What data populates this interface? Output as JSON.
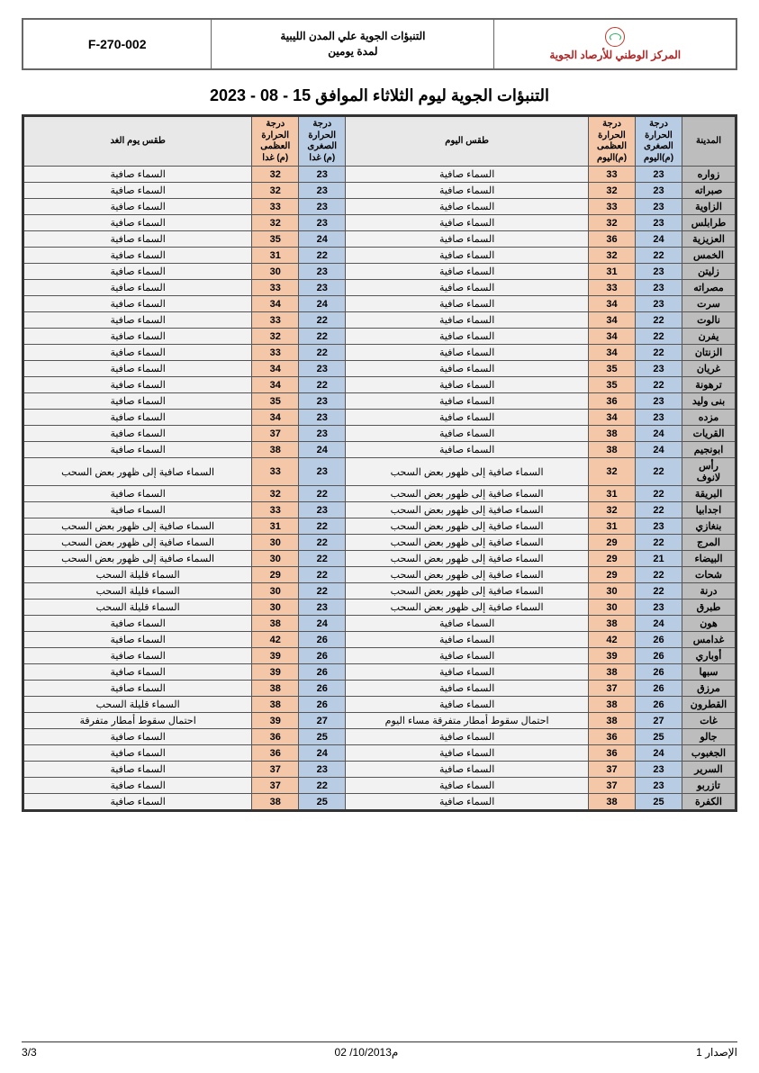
{
  "header": {
    "org_name": "المركز الوطني للأرصاد الجوية",
    "subtitle_line1": "التنبؤات الجوية علي المدن الليبية",
    "subtitle_line2": "لمدة يومين",
    "form_code": "F-270-002"
  },
  "title": "التنبؤات الجوية ليوم الثلاثاء الموافق 15 - 08 - 2023",
  "columns": {
    "city": "المدينة",
    "tmin_today": "درجة الحرارة الصغرى (م)اليوم",
    "tmax_today": "درجة الحرارة العظمى (م)اليوم",
    "wx_today": "طقس اليوم",
    "tmin_tom": "درجة الحرارة الصغرى (م) غدا",
    "tmax_tom": "درجة الحرارة العظمى (م) غدا",
    "wx_tom": "طقس يوم الغد"
  },
  "colors": {
    "city_bg": "#bdbdbd",
    "tmin_bg": "#b8cce4",
    "tmax_bg": "#f4c7a8",
    "wx_bg": "#f2f2f2",
    "border": "#555555",
    "outer_border": "#333333",
    "org_name_color": "#b02525"
  },
  "rows": [
    {
      "city": "زواره",
      "tmin1": 23,
      "tmax1": 33,
      "wx1": "السماء صافية",
      "tmin2": 23,
      "tmax2": 32,
      "wx2": "السماء صافية"
    },
    {
      "city": "صبراته",
      "tmin1": 23,
      "tmax1": 32,
      "wx1": "السماء صافية",
      "tmin2": 23,
      "tmax2": 32,
      "wx2": "السماء صافية"
    },
    {
      "city": "الزاوية",
      "tmin1": 23,
      "tmax1": 33,
      "wx1": "السماء صافية",
      "tmin2": 23,
      "tmax2": 33,
      "wx2": "السماء صافية"
    },
    {
      "city": "طرابلس",
      "tmin1": 23,
      "tmax1": 32,
      "wx1": "السماء صافية",
      "tmin2": 23,
      "tmax2": 32,
      "wx2": "السماء صافية"
    },
    {
      "city": "العزيزية",
      "tmin1": 24,
      "tmax1": 36,
      "wx1": "السماء صافية",
      "tmin2": 24,
      "tmax2": 35,
      "wx2": "السماء صافية"
    },
    {
      "city": "الخمس",
      "tmin1": 22,
      "tmax1": 32,
      "wx1": "السماء صافية",
      "tmin2": 22,
      "tmax2": 31,
      "wx2": "السماء صافية"
    },
    {
      "city": "زليتن",
      "tmin1": 23,
      "tmax1": 31,
      "wx1": "السماء صافية",
      "tmin2": 23,
      "tmax2": 30,
      "wx2": "السماء صافية"
    },
    {
      "city": "مصراته",
      "tmin1": 23,
      "tmax1": 33,
      "wx1": "السماء صافية",
      "tmin2": 23,
      "tmax2": 33,
      "wx2": "السماء صافية"
    },
    {
      "city": "سرت",
      "tmin1": 23,
      "tmax1": 34,
      "wx1": "السماء صافية",
      "tmin2": 24,
      "tmax2": 34,
      "wx2": "السماء صافية"
    },
    {
      "city": "نالوت",
      "tmin1": 22,
      "tmax1": 34,
      "wx1": "السماء صافية",
      "tmin2": 22,
      "tmax2": 33,
      "wx2": "السماء صافية"
    },
    {
      "city": "يفرن",
      "tmin1": 22,
      "tmax1": 34,
      "wx1": "السماء صافية",
      "tmin2": 22,
      "tmax2": 32,
      "wx2": "السماء صافية"
    },
    {
      "city": "الزنتان",
      "tmin1": 22,
      "tmax1": 34,
      "wx1": "السماء صافية",
      "tmin2": 22,
      "tmax2": 33,
      "wx2": "السماء صافية"
    },
    {
      "city": "غريان",
      "tmin1": 23,
      "tmax1": 35,
      "wx1": "السماء صافية",
      "tmin2": 23,
      "tmax2": 34,
      "wx2": "السماء صافية"
    },
    {
      "city": "ترهونة",
      "tmin1": 22,
      "tmax1": 35,
      "wx1": "السماء صافية",
      "tmin2": 22,
      "tmax2": 34,
      "wx2": "السماء صافية"
    },
    {
      "city": "بنى وليد",
      "tmin1": 23,
      "tmax1": 36,
      "wx1": "السماء صافية",
      "tmin2": 23,
      "tmax2": 35,
      "wx2": "السماء صافية"
    },
    {
      "city": "مزده",
      "tmin1": 23,
      "tmax1": 34,
      "wx1": "السماء صافية",
      "tmin2": 23,
      "tmax2": 34,
      "wx2": "السماء صافية"
    },
    {
      "city": "القريات",
      "tmin1": 24,
      "tmax1": 38,
      "wx1": "السماء صافية",
      "tmin2": 23,
      "tmax2": 37,
      "wx2": "السماء صافية"
    },
    {
      "city": "ابونجيم",
      "tmin1": 24,
      "tmax1": 38,
      "wx1": "السماء صافية",
      "tmin2": 24,
      "tmax2": 38,
      "wx2": "السماء صافية"
    },
    {
      "city": "رأس لانوف",
      "tmin1": 22,
      "tmax1": 32,
      "wx1": "السماء صافية إلى ظهور بعض السحب",
      "tmin2": 23,
      "tmax2": 33,
      "wx2": "السماء صافية إلى ظهور بعض السحب"
    },
    {
      "city": "البريقة",
      "tmin1": 22,
      "tmax1": 31,
      "wx1": "السماء صافية إلى ظهور بعض السحب",
      "tmin2": 22,
      "tmax2": 32,
      "wx2": "السماء صافية"
    },
    {
      "city": "اجدابيا",
      "tmin1": 22,
      "tmax1": 32,
      "wx1": "السماء صافية إلى ظهور بعض السحب",
      "tmin2": 23,
      "tmax2": 33,
      "wx2": "السماء صافية"
    },
    {
      "city": "بنغازي",
      "tmin1": 23,
      "tmax1": 31,
      "wx1": "السماء صافية إلى ظهور بعض السحب",
      "tmin2": 22,
      "tmax2": 31,
      "wx2": "السماء صافية إلى ظهور بعض السحب"
    },
    {
      "city": "المرج",
      "tmin1": 22,
      "tmax1": 29,
      "wx1": "السماء صافية إلى ظهور بعض السحب",
      "tmin2": 22,
      "tmax2": 30,
      "wx2": "السماء صافية إلى ظهور بعض السحب"
    },
    {
      "city": "البيضاء",
      "tmin1": 21,
      "tmax1": 29,
      "wx1": "السماء صافية إلى ظهور بعض السحب",
      "tmin2": 22,
      "tmax2": 30,
      "wx2": "السماء صافية إلى ظهور بعض السحب"
    },
    {
      "city": "شحات",
      "tmin1": 22,
      "tmax1": 29,
      "wx1": "السماء صافية إلى ظهور بعض السحب",
      "tmin2": 22,
      "tmax2": 29,
      "wx2": "السماء قليلة السحب"
    },
    {
      "city": "درنة",
      "tmin1": 22,
      "tmax1": 30,
      "wx1": "السماء صافية إلى ظهور بعض السحب",
      "tmin2": 22,
      "tmax2": 30,
      "wx2": "السماء قليلة السحب"
    },
    {
      "city": "طبرق",
      "tmin1": 23,
      "tmax1": 30,
      "wx1": "السماء صافية إلى ظهور بعض السحب",
      "tmin2": 23,
      "tmax2": 30,
      "wx2": "السماء قليلة السحب"
    },
    {
      "city": "هون",
      "tmin1": 24,
      "tmax1": 38,
      "wx1": "السماء صافية",
      "tmin2": 24,
      "tmax2": 38,
      "wx2": "السماء صافية"
    },
    {
      "city": "غدامس",
      "tmin1": 26,
      "tmax1": 42,
      "wx1": "السماء صافية",
      "tmin2": 26,
      "tmax2": 42,
      "wx2": "السماء صافية"
    },
    {
      "city": "أوباري",
      "tmin1": 26,
      "tmax1": 39,
      "wx1": "السماء صافية",
      "tmin2": 26,
      "tmax2": 39,
      "wx2": "السماء صافية"
    },
    {
      "city": "سبها",
      "tmin1": 26,
      "tmax1": 38,
      "wx1": "السماء صافية",
      "tmin2": 26,
      "tmax2": 39,
      "wx2": "السماء صافية"
    },
    {
      "city": "مرزق",
      "tmin1": 26,
      "tmax1": 37,
      "wx1": "السماء صافية",
      "tmin2": 26,
      "tmax2": 38,
      "wx2": "السماء صافية"
    },
    {
      "city": "القطرون",
      "tmin1": 26,
      "tmax1": 38,
      "wx1": "السماء صافية",
      "tmin2": 26,
      "tmax2": 38,
      "wx2": "السماء قليلة السحب"
    },
    {
      "city": "غات",
      "tmin1": 27,
      "tmax1": 38,
      "wx1": "احتمال سقوط أمطار متفرقة مساء اليوم",
      "tmin2": 27,
      "tmax2": 39,
      "wx2": "احتمال سقوط أمطار متفرقة"
    },
    {
      "city": "جالو",
      "tmin1": 25,
      "tmax1": 36,
      "wx1": "السماء صافية",
      "tmin2": 25,
      "tmax2": 36,
      "wx2": "السماء صافية"
    },
    {
      "city": "الجغبوب",
      "tmin1": 24,
      "tmax1": 36,
      "wx1": "السماء صافية",
      "tmin2": 24,
      "tmax2": 36,
      "wx2": "السماء صافية"
    },
    {
      "city": "السرير",
      "tmin1": 23,
      "tmax1": 37,
      "wx1": "السماء صافية",
      "tmin2": 23,
      "tmax2": 37,
      "wx2": "السماء صافية"
    },
    {
      "city": "تازربو",
      "tmin1": 23,
      "tmax1": 37,
      "wx1": "السماء صافية",
      "tmin2": 22,
      "tmax2": 37,
      "wx2": "السماء صافية"
    },
    {
      "city": "الكفرة",
      "tmin1": 25,
      "tmax1": 38,
      "wx1": "السماء صافية",
      "tmin2": 25,
      "tmax2": 38,
      "wx2": "السماء صافية"
    }
  ],
  "footer": {
    "right": "الإصدار 1",
    "center": "02 /10/2013م",
    "left": "3/3"
  }
}
